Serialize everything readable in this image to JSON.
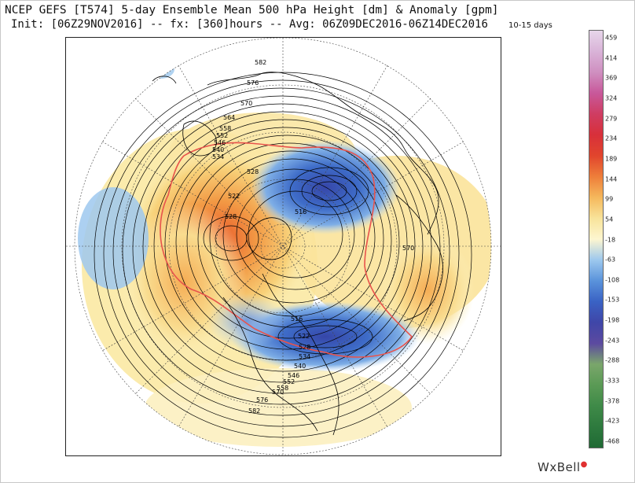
{
  "header": {
    "title": "NCEP GEFS [T574] 5-day Ensemble Mean 500 hPa Height [dm] & Anomaly [gpm]",
    "subtitle": "Init: [06Z29NOV2016] -- fx: [360]hours -- Avg: 06Z09DEC2016-06Z14DEC2016",
    "period": "10-15 days"
  },
  "colorbar": {
    "labels": [
      "459",
      "414",
      "369",
      "324",
      "279",
      "234",
      "189",
      "144",
      "99",
      "54",
      "-18",
      "-63",
      "-108",
      "-153",
      "-198",
      "-243",
      "-288",
      "-333",
      "-378",
      "-423",
      "-468"
    ],
    "colors": [
      "#e7d6ea",
      "#d9b3d8",
      "#cf8fc0",
      "#c8589a",
      "#cf3d62",
      "#d8303a",
      "#e1452d",
      "#ee7e3a",
      "#f5b85c",
      "#f8e39a",
      "#fdf6d0",
      "#9dc8ee",
      "#5a93db",
      "#3a62c4",
      "#3f46a8",
      "#5c4aa0",
      "#7aa66b",
      "#5a9a55",
      "#3f8a48",
      "#2e7a3e",
      "#1f6a34"
    ]
  },
  "map": {
    "contour_labels": [
      "582",
      "576",
      "570",
      "564",
      "558",
      "552",
      "546",
      "540",
      "534",
      "528",
      "522",
      "528",
      "516",
      "516",
      "522",
      "528",
      "534",
      "540",
      "546",
      "552",
      "558",
      "570",
      "576",
      "582",
      "570"
    ]
  },
  "logo": {
    "text": "WxBell",
    "dot": "●"
  }
}
